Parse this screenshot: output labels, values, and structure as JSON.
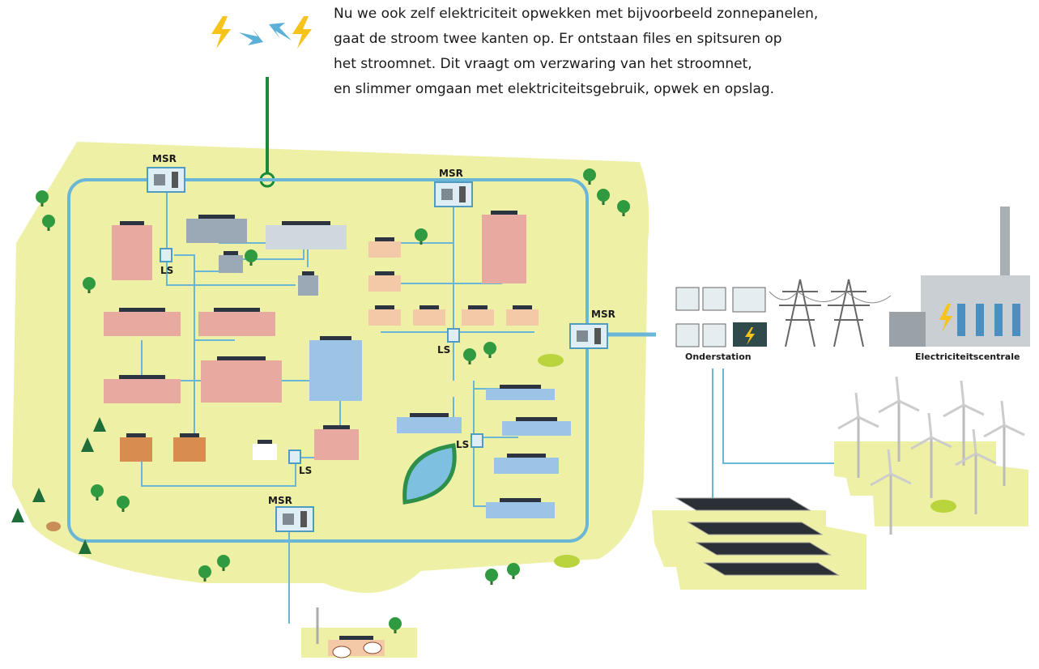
{
  "intro": {
    "lines": [
      "Nu we ook zelf elektriciteit opwekken met bijvoorbeeld zonnepanelen,",
      "gaat de stroom twee kanten op. Er ontstaan files en spitsuren op",
      "het stroomnet. Dit vraagt om verzwaring van het stroomnet,",
      "en slimmer omgaan met elektriciteitsgebruik, opwek en opslag."
    ]
  },
  "nodes": [
    {
      "label": "MSR"
    },
    {
      "label": "MSR"
    },
    {
      "label": "MSR"
    },
    {
      "label": "MSR"
    },
    {
      "label": "LS"
    },
    {
      "label": "LS"
    },
    {
      "label": "LS"
    },
    {
      "label": "LS"
    }
  ],
  "sites": [
    {
      "label": "Onderstation"
    },
    {
      "label": "Electriciteitscentrale"
    }
  ]
}
